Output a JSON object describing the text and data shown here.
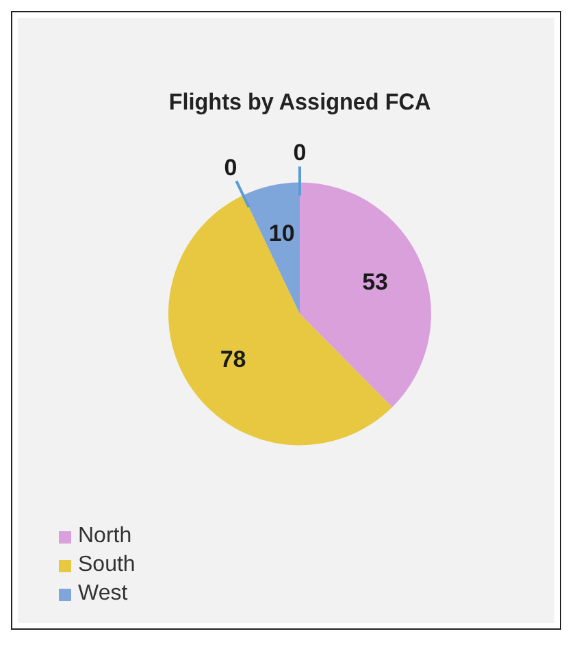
{
  "chart_data": {
    "type": "pie",
    "title": "Flights by Assigned FCA",
    "categories": [
      "North",
      "South",
      null,
      "West",
      null
    ],
    "values": [
      53,
      78,
      0,
      10,
      0
    ],
    "colors": [
      "#d9a0dc",
      "#e8c840",
      "#5b9bd5",
      "#7fa6da",
      "#5b9bd5"
    ],
    "value_labels": [
      "53",
      "78",
      "0",
      "10",
      "0"
    ],
    "legend": "bottom left"
  }
}
